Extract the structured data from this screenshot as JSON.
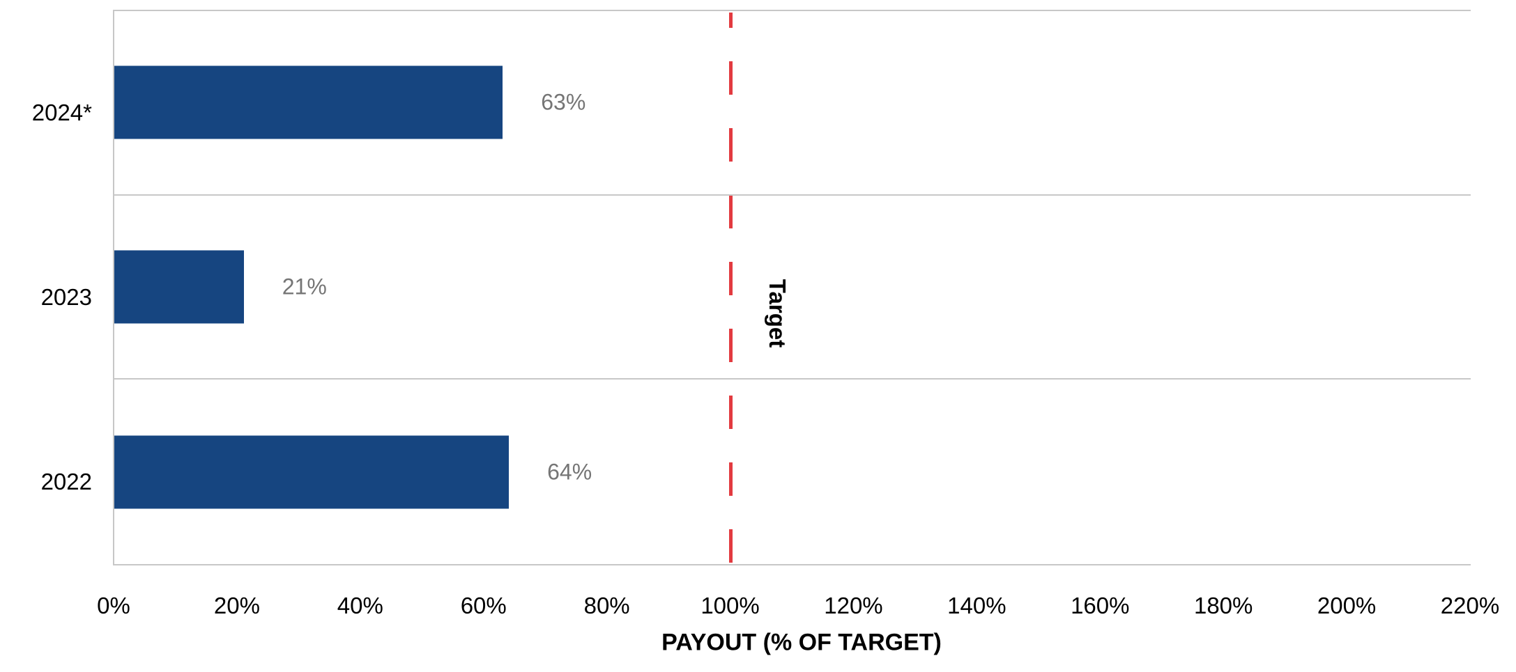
{
  "chart_data": {
    "type": "bar",
    "orientation": "horizontal",
    "title": "",
    "xlabel": "PAYOUT (% OF TARGET)",
    "ylabel": "",
    "categories": [
      "2024*",
      "2023",
      "2022"
    ],
    "values": [
      63,
      21,
      64
    ],
    "data_labels": [
      "63%",
      "21%",
      "64%"
    ],
    "xlim": [
      0,
      220
    ],
    "x_tick_values": [
      0,
      20,
      40,
      60,
      80,
      100,
      120,
      140,
      160,
      180,
      200,
      220
    ],
    "x_tick_labels": [
      "0%",
      "20%",
      "40%",
      "60%",
      "80%",
      "100%",
      "120%",
      "140%",
      "160%",
      "180%",
      "200%",
      "220%"
    ],
    "grid": "category-separator-lines-only",
    "legend_position": "none",
    "reference_line": {
      "value": 100,
      "label": "Target",
      "style": "dashed",
      "color": "#e23b40"
    },
    "colors": {
      "bar": "#164580",
      "data_label": "#757575",
      "gridline": "#c7c7c7",
      "axis_text": "#000000"
    }
  }
}
